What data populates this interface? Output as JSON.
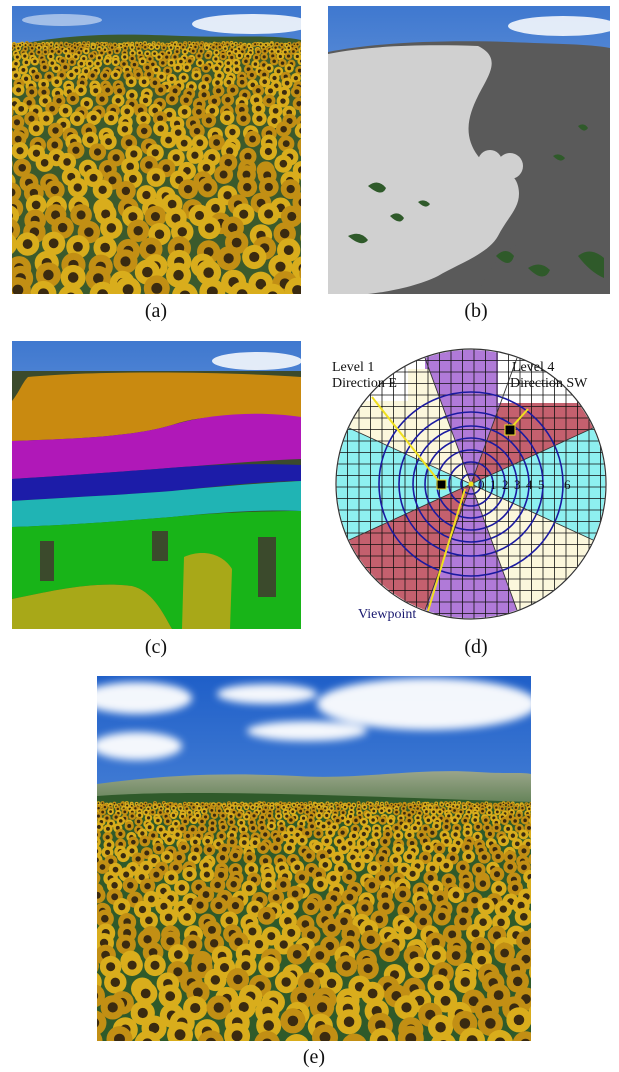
{
  "captions": {
    "a": "(a)",
    "b": "(b)",
    "c": "(c)",
    "d": "(d)",
    "e": "(e)"
  },
  "diagram": {
    "label_level1": "Level 1",
    "label_direction_e": "Direction E",
    "label_level4": "Level 4",
    "label_direction_sw": "Direction SW",
    "label_viewpoint": "Viewpoint",
    "ring_numbers": [
      "0",
      "1",
      "2",
      "3",
      "4",
      "5",
      "6"
    ]
  },
  "colors": {
    "sky": "#4a86d6",
    "field_yellow": "#c9a21c",
    "foliage_green": "#2f5a2a",
    "mask_light": "#cfcfcf",
    "mask_dark": "#5a5a5a",
    "level_orange": "#c98a10",
    "level_magenta": "#b018b8",
    "level_blue": "#1c1ca8",
    "level_cyan": "#20b4b4",
    "level_green": "#18b418",
    "level_olive": "#a8a818",
    "sector_purple": "#b07ad8",
    "sector_red": "#c4606e",
    "sector_cream": "#fbf7dc",
    "sector_cyan": "#8ef0f0",
    "ring_blue": "#1a1aa0",
    "label_navy": "#1a1a70",
    "leader_yellow": "#f0e020"
  }
}
